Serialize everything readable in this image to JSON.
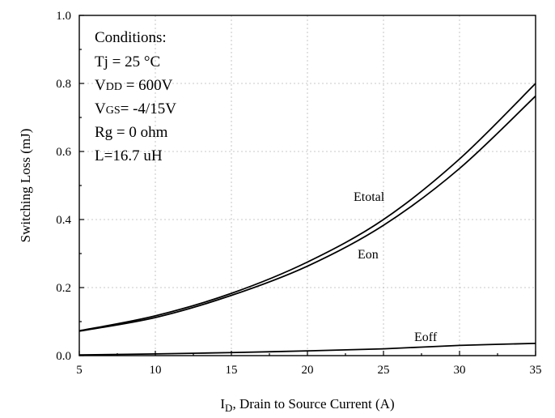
{
  "chart_data": {
    "type": "line",
    "xlabel": "I",
    "xlabel_sub": "D",
    "xlabel_rest": ", Drain to Source Current (A)",
    "ylabel": "Switching Loss (mJ)",
    "xlim": [
      5,
      35
    ],
    "ylim": [
      0.0,
      1.0
    ],
    "xticks": [
      5,
      10,
      15,
      20,
      25,
      30,
      35
    ],
    "yticks": [
      "0.0",
      "0.2",
      "0.4",
      "0.6",
      "0.8",
      "1.0"
    ],
    "grid": true,
    "conditions": [
      {
        "main": "Conditions:"
      },
      {
        "main": "Tj = 25 °C"
      },
      {
        "main": "V",
        "sub": "DD",
        "rest": " = 600V"
      },
      {
        "main": "V",
        "sub": "GS",
        "rest": "= -4/15V"
      },
      {
        "main": "Rg = 0 ohm"
      },
      {
        "main": "L=16.7 uH"
      }
    ],
    "series": [
      {
        "name": "Etotal",
        "x": [
          5,
          10,
          15,
          20,
          25,
          30,
          35
        ],
        "y": [
          0.073,
          0.117,
          0.183,
          0.275,
          0.4,
          0.578,
          0.8
        ]
      },
      {
        "name": "Eon",
        "x": [
          5,
          10,
          15,
          20,
          25,
          30,
          35
        ],
        "y": [
          0.072,
          0.112,
          0.177,
          0.263,
          0.383,
          0.55,
          0.763
        ]
      },
      {
        "name": "Eoff",
        "x": [
          5,
          10,
          15,
          20,
          25,
          30,
          35
        ],
        "y": [
          0.002,
          0.005,
          0.009,
          0.014,
          0.02,
          0.03,
          0.036
        ]
      }
    ]
  }
}
